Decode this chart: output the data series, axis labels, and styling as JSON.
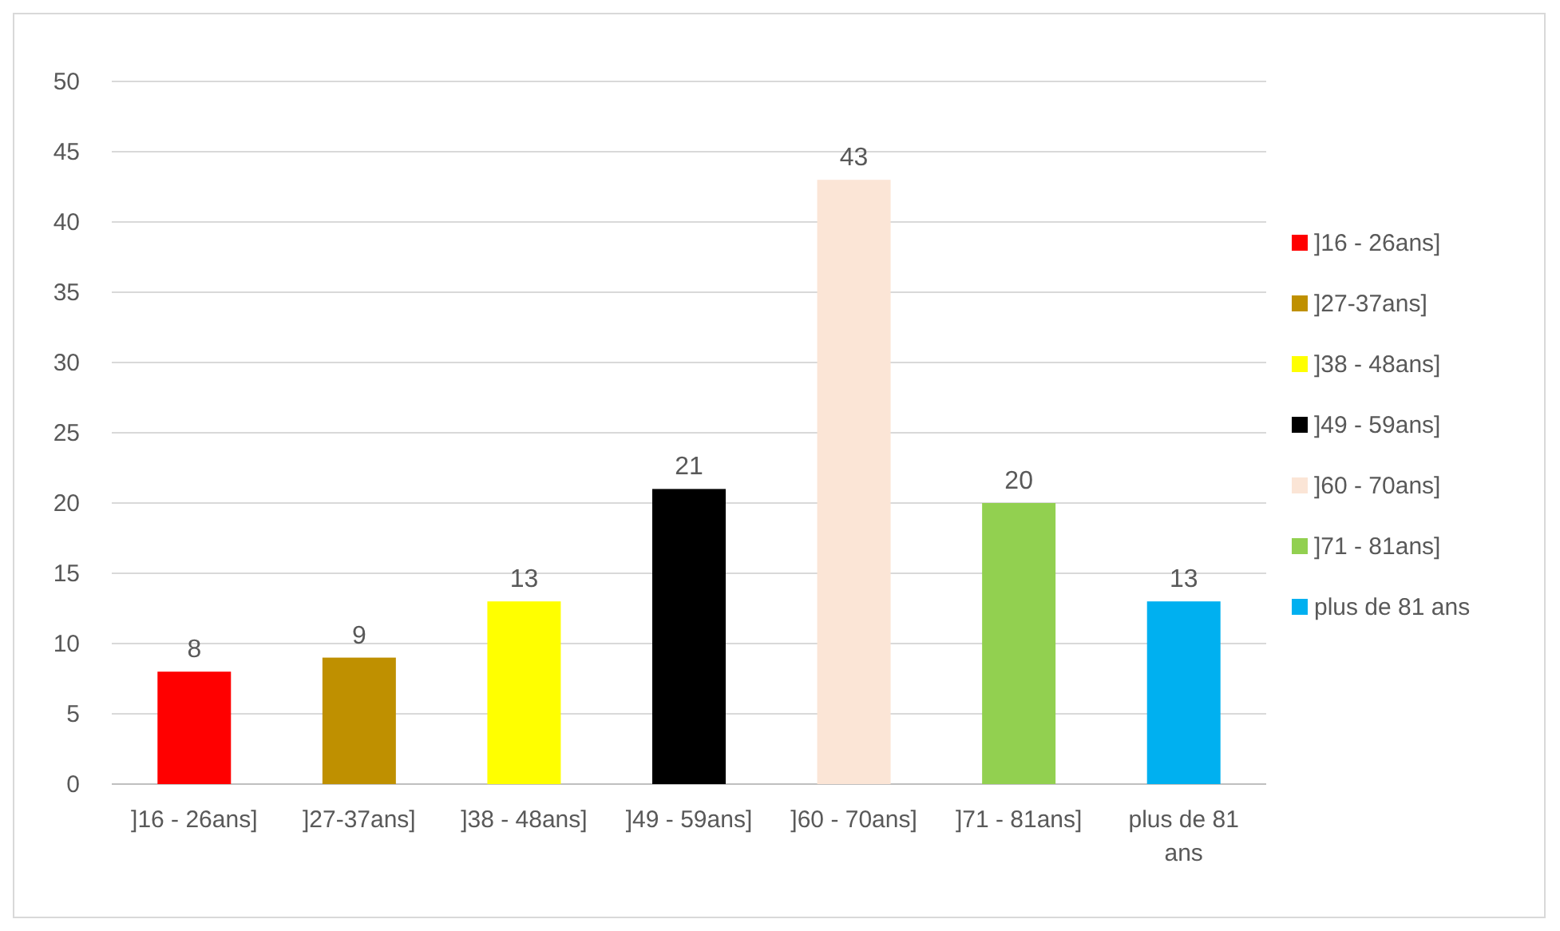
{
  "chart_data": {
    "type": "bar",
    "categories": [
      "]16 - 26ans]",
      "]27-37ans]",
      "]38 - 48ans]",
      "]49 - 59ans]",
      "]60 - 70ans]",
      "]71 - 81ans]",
      "plus de 81 ans"
    ],
    "series": [
      {
        "name": "]16 - 26ans]",
        "color": "#ff0000",
        "values": [
          8,
          null,
          null,
          null,
          null,
          null,
          null
        ]
      },
      {
        "name": "]27-37ans]",
        "color": "#bf9000",
        "values": [
          null,
          9,
          null,
          null,
          null,
          null,
          null
        ]
      },
      {
        "name": "]38 - 48ans]",
        "color": "#ffff00",
        "values": [
          null,
          null,
          13,
          null,
          null,
          null,
          null
        ]
      },
      {
        "name": "]49 - 59ans]",
        "color": "#000000",
        "values": [
          null,
          null,
          null,
          21,
          null,
          null,
          null
        ]
      },
      {
        "name": "]60 - 70ans]",
        "color": "#fbe5d6",
        "values": [
          null,
          null,
          null,
          null,
          43,
          null,
          null
        ]
      },
      {
        "name": "]71 - 81ans]",
        "color": "#92d050",
        "values": [
          null,
          null,
          null,
          null,
          null,
          20,
          null
        ]
      },
      {
        "name": "plus de 81 ans",
        "color": "#00b0f0",
        "values": [
          null,
          null,
          null,
          null,
          null,
          null,
          13
        ]
      }
    ],
    "ylim": [
      0,
      50
    ],
    "yticks": [
      0,
      5,
      10,
      15,
      20,
      25,
      30,
      35,
      40,
      45,
      50
    ],
    "grid": "y",
    "legend": "right",
    "data_labels": true
  }
}
